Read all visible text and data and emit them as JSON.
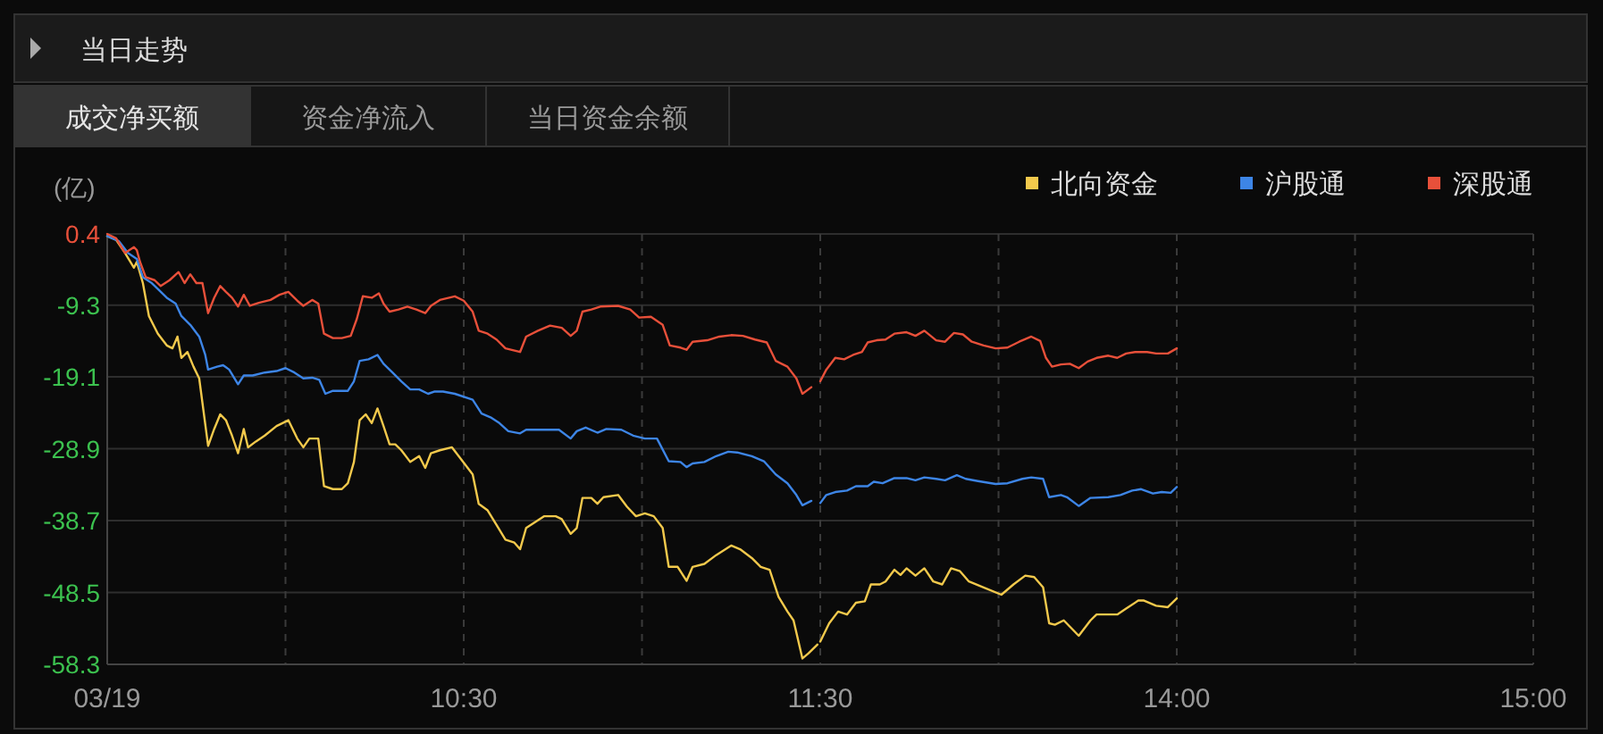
{
  "chart_data": [
    {
      "type": "line",
      "title": "当日走势",
      "annotations": [
        "成交净买额",
        "资金净流入",
        "当日资金余额"
      ],
      "ylabel": "(亿)",
      "xlim": [
        9.5,
        11.5
      ],
      "xticks": [
        {
          "value": 9.5,
          "label": "03/19"
        },
        {
          "value": 10,
          "label": null
        },
        {
          "value": 10.5,
          "label": "10:30"
        },
        {
          "value": 11,
          "label": null
        },
        {
          "value": 11.5,
          "label": "11:30"
        }
      ],
      "ylim": [
        -58.3,
        0.4
      ],
      "yticks": [
        0.4,
        -9.3,
        -19.1,
        -28.9,
        -38.7,
        -48.5,
        -58.3
      ],
      "grid": true,
      "series": [
        {
          "color": "#f2c94c",
          "x": [
            9.5,
            9.525,
            9.55,
            9.575,
            9.583,
            9.6,
            9.617,
            9.642,
            9.667,
            9.683,
            9.697,
            9.708,
            9.725,
            9.742,
            9.758,
            9.783,
            9.8,
            9.817,
            9.833,
            9.85,
            9.867,
            9.883,
            9.895,
            9.917,
            9.942,
            9.975,
            10.008,
            10.033,
            10.05,
            10.067,
            10.092,
            10.108,
            10.133,
            10.158,
            10.175,
            10.192,
            10.208,
            10.225,
            10.242,
            10.258,
            10.275,
            10.292,
            10.308,
            10.325,
            10.35,
            10.375,
            10.392,
            10.408,
            10.433,
            10.467,
            10.492,
            10.525,
            10.542,
            10.567,
            10.592,
            10.617,
            10.642,
            10.658,
            10.675,
            10.7,
            10.725,
            10.758,
            10.775,
            10.8,
            10.817,
            10.833,
            10.858,
            10.875,
            10.892,
            10.933,
            10.958,
            10.983,
            11.008,
            11.033,
            11.058,
            11.075,
            11.1,
            11.125,
            11.142,
            11.175,
            11.208,
            11.25,
            11.275,
            11.308,
            11.333,
            11.358,
            11.383,
            11.408,
            11.425,
            11.45,
            11.467,
            11.492
          ],
          "values": [
            0.1,
            -0.4,
            -2.2,
            -4.2,
            -3.4,
            -6.3,
            -10.8,
            -13.2,
            -14.8,
            -15.2,
            -13.6,
            -16.5,
            -15.7,
            -17.7,
            -19.3,
            -28.5,
            -26.2,
            -24.2,
            -25.0,
            -27.1,
            -29.5,
            -26.2,
            -28.7,
            -27.9,
            -27.1,
            -25.8,
            -25.0,
            -27.5,
            -28.7,
            -27.5,
            -27.5,
            -34.0,
            -34.4,
            -34.4,
            -33.6,
            -30.7,
            -25.0,
            -24.2,
            -25.4,
            -23.4,
            -25.8,
            -28.3,
            -28.3,
            -29.1,
            -30.7,
            -29.9,
            -31.5,
            -29.5,
            -29.1,
            -28.7,
            -30.3,
            -32.4,
            -36.4,
            -37.3,
            -39.3,
            -41.3,
            -41.7,
            -42.6,
            -39.7,
            -38.9,
            -38.1,
            -38.1,
            -38.5,
            -40.5,
            -39.7,
            -35.6,
            -35.6,
            -36.4,
            -35.5,
            -35.2,
            -36.8,
            -38.1,
            -37.7,
            -38.1,
            -39.7,
            -45.0,
            -45.0,
            -46.9,
            -45.0,
            -44.6,
            -43.4,
            -42.1,
            -42.6,
            -43.8,
            -45.0,
            -45.4,
            -49.1,
            -51.1,
            -52.3,
            -57.5,
            -56.8,
            -55.6
          ]
        },
        {
          "color": "#3d85e6",
          "x": [
            9.5,
            9.533,
            9.558,
            9.583,
            9.6,
            9.625,
            9.642,
            9.667,
            9.692,
            9.708,
            9.733,
            9.758,
            9.775,
            9.783,
            9.808,
            9.825,
            9.842,
            9.867,
            9.883,
            9.908,
            9.942,
            9.975,
            10,
            10.025,
            10.05,
            10.075,
            10.095,
            10.112,
            10.133,
            10.175,
            10.192,
            10.208,
            10.233,
            10.258,
            10.275,
            10.3,
            10.325,
            10.35,
            10.375,
            10.4,
            10.417,
            10.442,
            10.475,
            10.525,
            10.55,
            10.575,
            10.6,
            10.625,
            10.658,
            10.675,
            10.725,
            10.767,
            10.8,
            10.817,
            10.842,
            10.875,
            10.9,
            10.942,
            10.975,
            11.008,
            11.042,
            11.075,
            11.108,
            11.125,
            11.142,
            11.175,
            11.208,
            11.242,
            11.267,
            11.308,
            11.342,
            11.375,
            11.408,
            11.433,
            11.45,
            11.475
          ],
          "values": [
            0.1,
            -0.6,
            -2.2,
            -3.0,
            -5.5,
            -6.3,
            -7.1,
            -8.3,
            -9.1,
            -10.8,
            -12.0,
            -13.6,
            -16.1,
            -18.1,
            -17.7,
            -17.5,
            -18.1,
            -20.1,
            -18.9,
            -18.9,
            -18.5,
            -18.3,
            -17.9,
            -18.5,
            -19.3,
            -19.2,
            -19.5,
            -21.4,
            -21.0,
            -21.0,
            -19.7,
            -16.9,
            -16.7,
            -16.1,
            -17.3,
            -18.5,
            -19.7,
            -20.8,
            -20.8,
            -21.4,
            -21.1,
            -21.1,
            -21.4,
            -22.2,
            -24.1,
            -24.6,
            -25.4,
            -26.5,
            -26.8,
            -26.3,
            -26.3,
            -26.3,
            -27.5,
            -26.5,
            -26.0,
            -26.7,
            -26.2,
            -26.3,
            -27.1,
            -27.5,
            -27.5,
            -30.6,
            -30.7,
            -31.4,
            -30.9,
            -30.7,
            -29.9,
            -29.3,
            -29.4,
            -29.9,
            -30.6,
            -32.4,
            -33.6,
            -35.2,
            -36.6,
            -36.0
          ]
        },
        {
          "color": "#e8503a",
          "x": [
            9.5,
            9.525,
            9.55,
            9.575,
            9.583,
            9.592,
            9.608,
            9.633,
            9.65,
            9.675,
            9.7,
            9.717,
            9.733,
            9.75,
            9.767,
            9.783,
            9.8,
            9.817,
            9.833,
            9.85,
            9.867,
            9.883,
            9.9,
            9.925,
            9.958,
            9.983,
            10.008,
            10.033,
            10.05,
            10.075,
            10.092,
            10.108,
            10.133,
            10.158,
            10.183,
            10.2,
            10.217,
            10.242,
            10.262,
            10.275,
            10.292,
            10.317,
            10.342,
            10.367,
            10.392,
            10.408,
            10.433,
            10.475,
            10.5,
            10.525,
            10.542,
            10.567,
            10.592,
            10.617,
            10.658,
            10.675,
            10.708,
            10.742,
            10.775,
            10.8,
            10.817,
            10.833,
            10.858,
            10.883,
            10.933,
            10.967,
            10.992,
            11.025,
            11.058,
            11.078,
            11.108,
            11.125,
            11.142,
            11.183,
            11.217,
            11.25,
            11.283,
            11.317,
            11.35,
            11.375,
            11.408,
            11.433,
            11.45,
            11.475
          ],
          "values": [
            0.4,
            -0.2,
            -2.2,
            -1.4,
            -1.8,
            -3.4,
            -5.5,
            -5.9,
            -6.7,
            -5.9,
            -4.8,
            -6.3,
            -5.1,
            -6.3,
            -6.3,
            -10.4,
            -8.3,
            -6.7,
            -7.5,
            -8.3,
            -9.5,
            -7.9,
            -9.4,
            -9.0,
            -8.6,
            -7.9,
            -7.5,
            -8.7,
            -9.4,
            -8.6,
            -9.1,
            -13.2,
            -13.8,
            -13.8,
            -13.5,
            -11.2,
            -8.1,
            -8.3,
            -7.7,
            -9.1,
            -10.2,
            -9.9,
            -9.5,
            -9.9,
            -10.4,
            -9.4,
            -8.6,
            -8.1,
            -8.7,
            -10.2,
            -12.8,
            -13.2,
            -14.0,
            -15.2,
            -15.7,
            -13.6,
            -12.8,
            -12.1,
            -12.4,
            -13.5,
            -12.8,
            -10.2,
            -9.9,
            -9.5,
            -9.4,
            -9.9,
            -11.0,
            -10.9,
            -12.0,
            -14.8,
            -15.1,
            -15.4,
            -14.3,
            -14.1,
            -13.6,
            -13.4,
            -13.5,
            -14.0,
            -14.4,
            -16.9,
            -17.7,
            -19.3,
            -21.4,
            -20.5
          ]
        }
      ]
    },
    {
      "type": "line",
      "xlim": [
        13,
        15
      ],
      "xticks": [
        {
          "value": 13,
          "label": null
        },
        {
          "value": 13.5,
          "label": null
        },
        {
          "value": 14,
          "label": "14:00"
        },
        {
          "value": 14.5,
          "label": null
        },
        {
          "value": 15,
          "label": "15:00"
        }
      ],
      "ylim": [
        -58.3,
        0.4
      ],
      "yticks": [
        0.4,
        -9.3,
        -19.1,
        -28.9,
        -38.7,
        -48.5,
        -58.3
      ],
      "tick_labels": "x",
      "grid": true,
      "legend": "top right",
      "series": [
        {
          "name": "北向资金",
          "color": "#f2c94c",
          "x": [
            13,
            13.025,
            13.05,
            13.075,
            13.1,
            13.125,
            13.142,
            13.167,
            13.183,
            13.208,
            13.225,
            13.242,
            13.267,
            13.292,
            13.317,
            13.342,
            13.367,
            13.392,
            13.417,
            13.458,
            13.508,
            13.542,
            13.575,
            13.6,
            13.625,
            13.642,
            13.658,
            13.683,
            13.725,
            13.758,
            13.775,
            13.808,
            13.833,
            13.858,
            13.892,
            13.908,
            13.942,
            13.975,
            14
          ],
          "values": [
            -55.2,
            -52.7,
            -51.1,
            -51.5,
            -49.9,
            -49.7,
            -47.4,
            -47.4,
            -47.0,
            -45.4,
            -46.1,
            -45.2,
            -46.2,
            -45.2,
            -47.0,
            -47.4,
            -45.2,
            -45.6,
            -47.0,
            -47.8,
            -48.8,
            -47.4,
            -46.2,
            -46.4,
            -47.8,
            -52.7,
            -52.9,
            -52.3,
            -54.4,
            -52.3,
            -51.5,
            -51.5,
            -51.5,
            -50.7,
            -49.6,
            -49.6,
            -50.3,
            -50.5,
            -49.3
          ]
        },
        {
          "name": "沪股通",
          "color": "#3d85e6",
          "x": [
            13,
            13.017,
            13.042,
            13.075,
            13.1,
            13.133,
            13.15,
            13.175,
            13.208,
            13.242,
            13.267,
            13.292,
            13.325,
            13.35,
            13.383,
            13.408,
            13.442,
            13.492,
            13.525,
            13.567,
            13.592,
            13.625,
            13.642,
            13.675,
            13.692,
            13.725,
            13.758,
            13.808,
            13.842,
            13.875,
            13.9,
            13.933,
            13.958,
            13.983,
            14
          ],
          "values": [
            -36.3,
            -35.2,
            -34.8,
            -34.6,
            -34.0,
            -34.0,
            -33.4,
            -33.6,
            -32.9,
            -32.9,
            -33.2,
            -32.8,
            -33.0,
            -33.2,
            -32.5,
            -33.0,
            -33.3,
            -33.7,
            -33.6,
            -33.0,
            -32.8,
            -33.0,
            -35.5,
            -35.2,
            -35.5,
            -36.7,
            -35.6,
            -35.5,
            -35.2,
            -34.6,
            -34.4,
            -35.0,
            -34.8,
            -34.9,
            -34.1
          ]
        },
        {
          "name": "深股通",
          "color": "#e8503a",
          "x": [
            13,
            13.017,
            13.042,
            13.067,
            13.092,
            13.117,
            13.133,
            13.158,
            13.183,
            13.208,
            13.242,
            13.267,
            13.292,
            13.325,
            13.35,
            13.375,
            13.4,
            13.425,
            13.458,
            13.492,
            13.525,
            13.558,
            13.592,
            13.617,
            13.633,
            13.65,
            13.675,
            13.7,
            13.725,
            13.75,
            13.775,
            13.808,
            13.833,
            13.858,
            13.883,
            13.917,
            13.942,
            13.975,
            14
          ],
          "values": [
            -19.7,
            -18.1,
            -16.5,
            -16.7,
            -16.1,
            -15.7,
            -14.4,
            -14.1,
            -14.0,
            -13.2,
            -13.0,
            -13.5,
            -12.8,
            -14.1,
            -14.3,
            -13.1,
            -13.3,
            -14.3,
            -14.8,
            -15.2,
            -15.1,
            -14.3,
            -13.6,
            -14.2,
            -16.5,
            -17.7,
            -17.4,
            -17.3,
            -17.9,
            -17.0,
            -16.5,
            -16.2,
            -16.5,
            -15.9,
            -15.7,
            -15.7,
            -15.9,
            -15.9,
            -15.2
          ]
        }
      ]
    }
  ]
}
